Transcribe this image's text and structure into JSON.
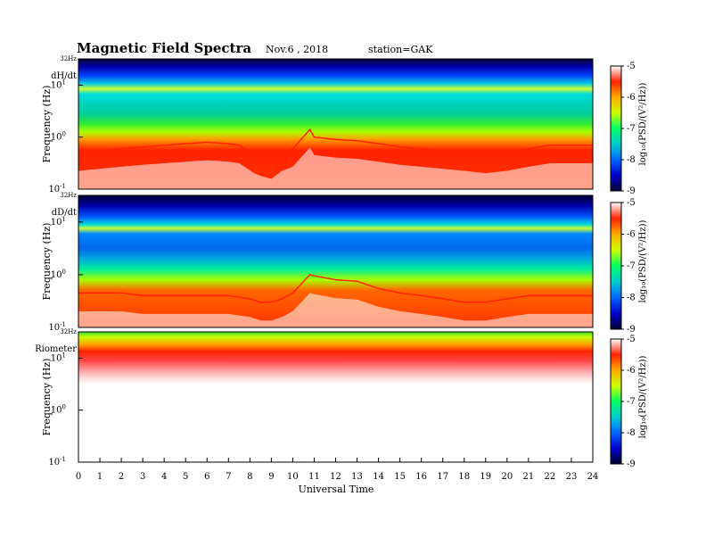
{
  "header": {
    "title": "Magnetic  Field  Spectra",
    "date": "Nov.6  , 2018",
    "station": "station=GAK"
  },
  "chart_data": {
    "type": "heatmap",
    "x": {
      "label": "Universal Time",
      "range": [
        0,
        24
      ],
      "ticks": [
        "0",
        "1",
        "2",
        "3",
        "4",
        "5",
        "6",
        "7",
        "8",
        "9",
        "10",
        "11",
        "12",
        "13",
        "14",
        "15",
        "16",
        "17",
        "18",
        "19",
        "20",
        "21",
        "22",
        "23",
        "24"
      ]
    },
    "y": {
      "label": "Frequency (Hz)",
      "scale": "log",
      "range": [
        0.1,
        32
      ],
      "top_label": "32Hz",
      "ticks": [
        {
          "value": 0.1,
          "base": "10",
          "exp": "-1"
        },
        {
          "value": 1,
          "base": "10",
          "exp": "0"
        },
        {
          "value": 10,
          "base": "10",
          "exp": "1"
        }
      ]
    },
    "colorbar": {
      "label": "log₁₀(PSD/(V²/Hz))",
      "range": [
        -9,
        -5
      ],
      "ticks": [
        "-5",
        "-6",
        "-7",
        "-8",
        "-9"
      ],
      "colors": [
        "#000033",
        "#0000cc",
        "#0066ff",
        "#00cccc",
        "#00ff66",
        "#ccff00",
        "#ffaa00",
        "#ff2200",
        "#ffffff"
      ]
    },
    "panels": [
      {
        "name": "dH/dt",
        "profile": [
          [
            0,
            0.5
          ],
          [
            1,
            0.55
          ],
          [
            2,
            0.6
          ],
          [
            3,
            0.65
          ],
          [
            4,
            0.7
          ],
          [
            5,
            0.75
          ],
          [
            6,
            0.8
          ],
          [
            7,
            0.75
          ],
          [
            7.5,
            0.7
          ],
          [
            8.2,
            0.45
          ],
          [
            8.5,
            0.4
          ],
          [
            9,
            0.35
          ],
          [
            9.5,
            0.5
          ],
          [
            10,
            0.6
          ],
          [
            10.8,
            1.4
          ],
          [
            11,
            1.0
          ],
          [
            12,
            0.9
          ],
          [
            13,
            0.85
          ],
          [
            13.5,
            0.8
          ],
          [
            14,
            0.75
          ],
          [
            14.5,
            0.7
          ],
          [
            15,
            0.65
          ],
          [
            16,
            0.6
          ],
          [
            17,
            0.55
          ],
          [
            18,
            0.5
          ],
          [
            19,
            0.45
          ],
          [
            20,
            0.5
          ],
          [
            21,
            0.6
          ],
          [
            22,
            0.7
          ],
          [
            23,
            0.7
          ],
          [
            24,
            0.7
          ]
        ]
      },
      {
        "name": "dD/dt",
        "profile": [
          [
            0,
            0.45
          ],
          [
            1,
            0.45
          ],
          [
            2,
            0.45
          ],
          [
            3,
            0.4
          ],
          [
            4,
            0.4
          ],
          [
            5,
            0.4
          ],
          [
            6,
            0.4
          ],
          [
            7,
            0.4
          ],
          [
            8,
            0.35
          ],
          [
            8.5,
            0.3
          ],
          [
            9,
            0.3
          ],
          [
            9.5,
            0.35
          ],
          [
            10,
            0.45
          ],
          [
            10.8,
            1.0
          ],
          [
            11,
            0.95
          ],
          [
            12,
            0.8
          ],
          [
            13,
            0.75
          ],
          [
            14,
            0.55
          ],
          [
            15,
            0.45
          ],
          [
            16,
            0.4
          ],
          [
            17,
            0.35
          ],
          [
            18,
            0.3
          ],
          [
            19,
            0.3
          ],
          [
            20,
            0.35
          ],
          [
            21,
            0.4
          ],
          [
            22,
            0.4
          ],
          [
            23,
            0.4
          ],
          [
            24,
            0.4
          ]
        ]
      },
      {
        "name": "Riometer",
        "profile": [
          [
            0,
            10
          ],
          [
            24,
            10
          ]
        ]
      }
    ]
  }
}
